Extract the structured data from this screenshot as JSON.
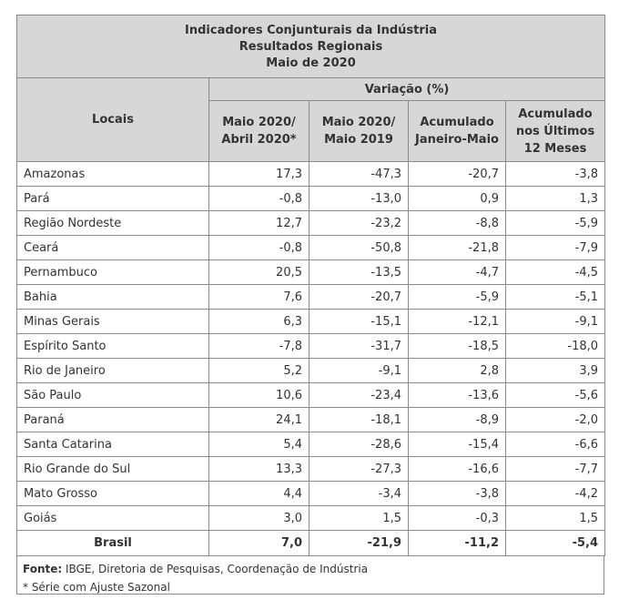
{
  "title": {
    "line1": "Indicadores Conjunturais da Indústria",
    "line2": "Resultados Regionais",
    "line3": "Maio de 2020"
  },
  "headers": {
    "locais": "Locais",
    "variacao": "Variação (%)",
    "col1": [
      "Maio 2020/",
      "Abril 2020*"
    ],
    "col2": [
      "Maio 2020/",
      "Maio 2019"
    ],
    "col3": [
      "Acumulado",
      "Janeiro-Maio"
    ],
    "col4": [
      "Acumulado",
      "nos Últimos",
      "12 Meses"
    ]
  },
  "rows": [
    {
      "local": "Amazonas",
      "v": [
        "17,3",
        "-47,3",
        "-20,7",
        "-3,8"
      ]
    },
    {
      "local": "Pará",
      "v": [
        "-0,8",
        "-13,0",
        "0,9",
        "1,3"
      ]
    },
    {
      "local": "Região Nordeste",
      "v": [
        "12,7",
        "-23,2",
        "-8,8",
        "-5,9"
      ]
    },
    {
      "local": "Ceará",
      "v": [
        "-0,8",
        "-50,8",
        "-21,8",
        "-7,9"
      ]
    },
    {
      "local": "Pernambuco",
      "v": [
        "20,5",
        "-13,5",
        "-4,7",
        "-4,5"
      ]
    },
    {
      "local": "Bahia",
      "v": [
        "7,6",
        "-20,7",
        "-5,9",
        "-5,1"
      ]
    },
    {
      "local": "Minas Gerais",
      "v": [
        "6,3",
        "-15,1",
        "-12,1",
        "-9,1"
      ]
    },
    {
      "local": "Espírito Santo",
      "v": [
        "-7,8",
        "-31,7",
        "-18,5",
        "-18,0"
      ]
    },
    {
      "local": "Rio de Janeiro",
      "v": [
        "5,2",
        "-9,1",
        "2,8",
        "3,9"
      ]
    },
    {
      "local": "São Paulo",
      "v": [
        "10,6",
        "-23,4",
        "-13,6",
        "-5,6"
      ]
    },
    {
      "local": "Paraná",
      "v": [
        "24,1",
        "-18,1",
        "-8,9",
        "-2,0"
      ]
    },
    {
      "local": "Santa Catarina",
      "v": [
        "5,4",
        "-28,6",
        "-15,4",
        "-6,6"
      ]
    },
    {
      "local": "Rio Grande do Sul",
      "v": [
        "13,3",
        "-27,3",
        "-16,6",
        "-7,7"
      ]
    },
    {
      "local": "Mato Grosso",
      "v": [
        "4,4",
        "-3,4",
        "-3,8",
        "-4,2"
      ]
    },
    {
      "local": "Goiás",
      "v": [
        "3,0",
        "1,5",
        "-0,3",
        "1,5"
      ]
    }
  ],
  "total": {
    "local": "Brasil",
    "v": [
      "7,0",
      "-21,9",
      "-11,2",
      "-5,4"
    ]
  },
  "footnote": {
    "fonte_label": "Fonte:",
    "fonte_text": " IBGE, Diretoria de Pesquisas, Coordenação de Indústria",
    "note": "* Série com Ajuste Sazonal"
  }
}
